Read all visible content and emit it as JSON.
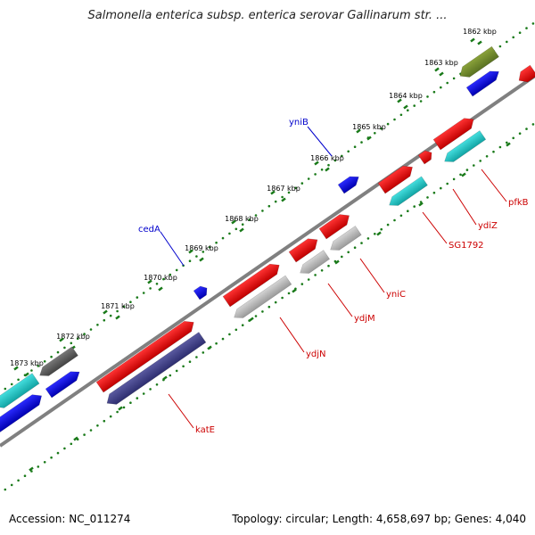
{
  "title": "Salmonella enterica subsp. enterica serovar Gallinarum str. ...",
  "footer": {
    "accession": "Accession: NC_011274",
    "summary": "Topology: circular; Length: 4,658,697 bp; Genes: 4,040"
  },
  "colors": {
    "backbone": "#808080",
    "tick": "#1a7a1a",
    "label_red": "#cc0000",
    "label_blue": "#0000cc"
  },
  "ticks": [
    {
      "label": "1862 kbp"
    },
    {
      "label": "1863 kbp"
    },
    {
      "label": "1864 kbp"
    },
    {
      "label": "1865 kbp"
    },
    {
      "label": "1866 kbp"
    },
    {
      "label": "1867 kbp"
    },
    {
      "label": "1868 kbp"
    },
    {
      "label": "1869 kbp"
    },
    {
      "label": "1870 kbp"
    },
    {
      "label": "1871 kbp"
    },
    {
      "label": "1872 kbp"
    },
    {
      "label": "1873 kbp"
    }
  ],
  "gene_labels": [
    {
      "name": "yniB",
      "color": "#0000cc"
    },
    {
      "name": "cedA",
      "color": "#0000cc"
    },
    {
      "name": "pfkB",
      "color": "#cc0000"
    },
    {
      "name": "ydiZ",
      "color": "#cc0000"
    },
    {
      "name": "SG1792",
      "color": "#cc0000"
    },
    {
      "name": "yniC",
      "color": "#cc0000"
    },
    {
      "name": "ydjM",
      "color": "#cc0000"
    },
    {
      "name": "ydjN",
      "color": "#cc0000"
    },
    {
      "name": "katE",
      "color": "#cc0000"
    }
  ]
}
